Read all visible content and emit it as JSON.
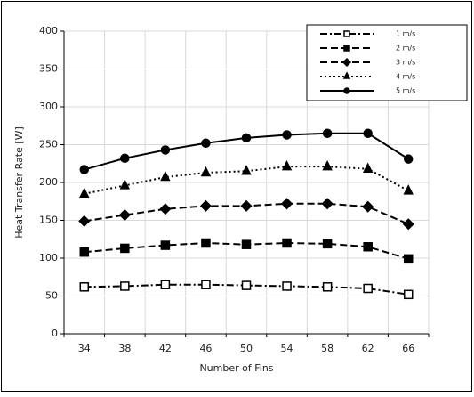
{
  "chart_data": {
    "type": "line",
    "x_label": "Number of Fins",
    "y_label": "Heat Transfer Rate [W]",
    "categories": [
      34,
      38,
      42,
      46,
      50,
      54,
      58,
      62,
      66
    ],
    "ylim": [
      0,
      400
    ],
    "yticks": [
      0,
      50,
      100,
      150,
      200,
      250,
      300,
      350,
      400
    ],
    "grid": true,
    "legend": "top-right",
    "series": [
      {
        "name": "1 m/s",
        "color": "#000000",
        "dash": "dash-dot",
        "marker": "open-square",
        "values": [
          62,
          63,
          65,
          65,
          64,
          63,
          62,
          60,
          52
        ]
      },
      {
        "name": "2 m/s",
        "color": "#000000",
        "dash": "dashed",
        "marker": "square",
        "values": [
          108,
          113,
          117,
          120,
          118,
          120,
          119,
          115,
          99
        ]
      },
      {
        "name": "3 m/s",
        "color": "#000000",
        "dash": "dashed",
        "marker": "diamond",
        "values": [
          149,
          157,
          165,
          169,
          169,
          172,
          172,
          168,
          145
        ]
      },
      {
        "name": "4 m/s",
        "color": "#000000",
        "dash": "dotted",
        "marker": "triangle",
        "values": [
          185,
          196,
          207,
          213,
          215,
          221,
          221,
          218,
          189
        ]
      },
      {
        "name": "5 m/s",
        "color": "#000000",
        "dash": "solid",
        "marker": "circle",
        "values": [
          217,
          232,
          243,
          252,
          259,
          263,
          265,
          265,
          231
        ]
      }
    ]
  }
}
